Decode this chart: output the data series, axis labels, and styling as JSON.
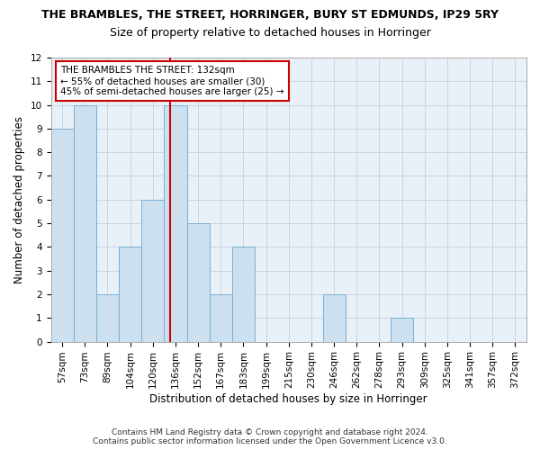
{
  "title": "THE BRAMBLES, THE STREET, HORRINGER, BURY ST EDMUNDS, IP29 5RY",
  "subtitle": "Size of property relative to detached houses in Horringer",
  "xlabel": "Distribution of detached houses by size in Horringer",
  "ylabel": "Number of detached properties",
  "categories": [
    "57sqm",
    "73sqm",
    "89sqm",
    "104sqm",
    "120sqm",
    "136sqm",
    "152sqm",
    "167sqm",
    "183sqm",
    "199sqm",
    "215sqm",
    "230sqm",
    "246sqm",
    "262sqm",
    "278sqm",
    "293sqm",
    "309sqm",
    "325sqm",
    "341sqm",
    "357sqm",
    "372sqm"
  ],
  "values": [
    9,
    10,
    2,
    4,
    6,
    10,
    5,
    2,
    4,
    0,
    0,
    0,
    2,
    0,
    0,
    1,
    0,
    0,
    0,
    0,
    0
  ],
  "bar_color": "#cce0f0",
  "bar_edgecolor": "#7bafd4",
  "red_line_color": "#cc0000",
  "annotation_title": "THE BRAMBLES THE STREET: 132sqm",
  "annotation_line1": "← 55% of detached houses are smaller (30)",
  "annotation_line2": "45% of semi-detached houses are larger (25) →",
  "annotation_box_color": "#ffffff",
  "annotation_box_edgecolor": "#cc0000",
  "ylim": [
    0,
    12
  ],
  "yticks": [
    0,
    1,
    2,
    3,
    4,
    5,
    6,
    7,
    8,
    9,
    10,
    11,
    12
  ],
  "footer1": "Contains HM Land Registry data © Crown copyright and database right 2024.",
  "footer2": "Contains public sector information licensed under the Open Government Licence v3.0.",
  "title_fontsize": 9,
  "subtitle_fontsize": 9,
  "axis_label_fontsize": 8.5,
  "tick_fontsize": 7.5,
  "annotation_fontsize": 7.5,
  "footer_fontsize": 6.5
}
